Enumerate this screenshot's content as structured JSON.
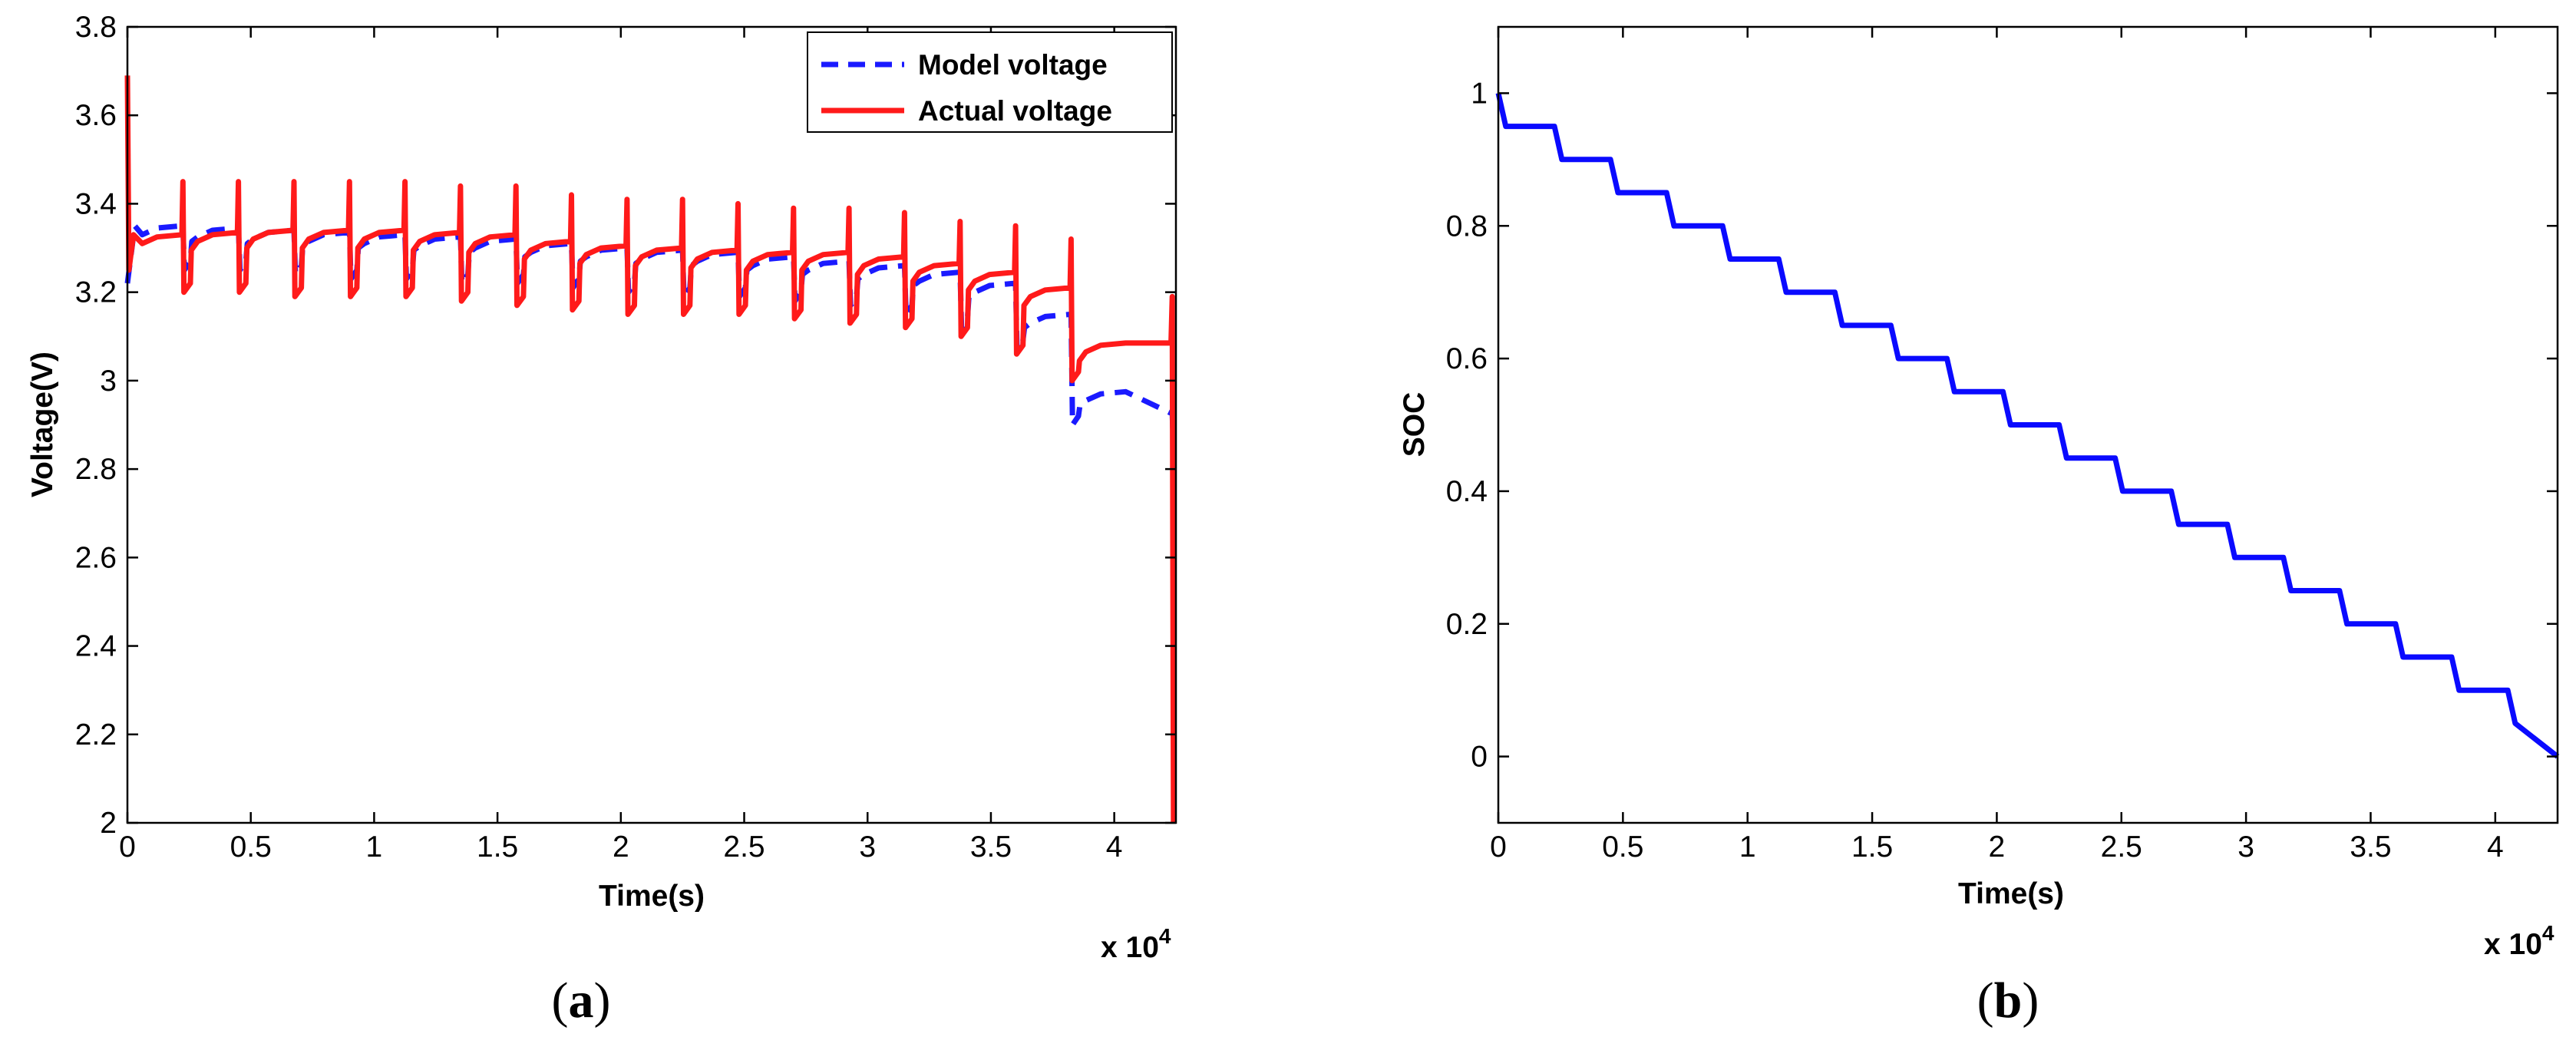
{
  "chart_data": [
    {
      "type": "line",
      "panel_label": "(a)",
      "panel_letter": "a",
      "xlabel": "Time(s)",
      "ylabel": "Voltage(V)",
      "x_multiplier_label": "x 10",
      "x_multiplier_exp": "4",
      "xlim": [
        0,
        42500
      ],
      "ylim": [
        2.0,
        3.8
      ],
      "xticks": [
        0,
        5000,
        10000,
        15000,
        20000,
        25000,
        30000,
        35000,
        40000
      ],
      "xtick_labels": [
        "0",
        "0.5",
        "1",
        "1.5",
        "2",
        "2.5",
        "3",
        "3.5",
        "4"
      ],
      "yticks": [
        2.0,
        2.2,
        2.4,
        2.6,
        2.8,
        3.0,
        3.2,
        3.4,
        3.6,
        3.8
      ],
      "ytick_labels": [
        "2",
        "2.2",
        "2.4",
        "2.6",
        "2.8",
        "3",
        "3.2",
        "3.4",
        "3.6",
        "3.8"
      ],
      "legend": {
        "placement": "top-right",
        "entries": [
          "Model voltage",
          "Actual voltage"
        ]
      },
      "pulse_period": 2250,
      "pulse_width": 300,
      "series": [
        {
          "name": "Model voltage",
          "color": "#1a1aff",
          "style": "dashed",
          "plateau_levels": [
            3.35,
            3.345,
            3.34,
            3.335,
            3.33,
            3.325,
            3.32,
            3.31,
            3.3,
            3.295,
            3.29,
            3.28,
            3.27,
            3.26,
            3.245,
            3.22,
            3.15,
            2.975
          ],
          "dip_levels": [
            3.23,
            3.25,
            3.25,
            3.24,
            3.23,
            3.23,
            3.22,
            3.22,
            3.21,
            3.2,
            3.19,
            3.19,
            3.18,
            3.17,
            3.15,
            3.12,
            3.07,
            2.9
          ],
          "start": 3.22,
          "end": 2.84
        },
        {
          "name": "Actual voltage",
          "color": "#ff1a1a",
          "style": "solid",
          "plateau_levels": [
            3.33,
            3.335,
            3.34,
            3.34,
            3.34,
            3.335,
            3.33,
            3.315,
            3.305,
            3.3,
            3.295,
            3.29,
            3.29,
            3.28,
            3.265,
            3.245,
            3.21,
            3.085
          ],
          "dip_levels": [
            3.25,
            3.2,
            3.2,
            3.19,
            3.19,
            3.19,
            3.18,
            3.17,
            3.16,
            3.15,
            3.15,
            3.15,
            3.14,
            3.13,
            3.12,
            3.1,
            3.06,
            3.0
          ],
          "spike_levels": [
            3.69,
            3.45,
            3.45,
            3.45,
            3.45,
            3.45,
            3.44,
            3.44,
            3.42,
            3.41,
            3.41,
            3.4,
            3.39,
            3.39,
            3.38,
            3.36,
            3.35,
            3.32,
            3.19
          ],
          "end": 2.0
        }
      ]
    },
    {
      "type": "line",
      "panel_label": "(b)",
      "panel_letter": "b",
      "xlabel": "Time(s)",
      "ylabel": "SOC",
      "x_multiplier_label": "x 10",
      "x_multiplier_exp": "4",
      "xlim": [
        0,
        42500
      ],
      "ylim": [
        -0.1,
        1.1
      ],
      "xticks": [
        0,
        5000,
        10000,
        15000,
        20000,
        25000,
        30000,
        35000,
        40000
      ],
      "xtick_labels": [
        "0",
        "0.5",
        "1",
        "1.5",
        "2",
        "2.5",
        "3",
        "3.5",
        "4"
      ],
      "yticks": [
        0,
        0.2,
        0.4,
        0.6,
        0.8,
        1.0
      ],
      "ytick_labels": [
        "0",
        "0.2",
        "0.4",
        "0.6",
        "0.8",
        "1"
      ],
      "series": [
        {
          "name": "SOC",
          "color": "#0a0aff",
          "style": "solid",
          "step_period": 2250,
          "ramp_width": 300,
          "levels": [
            1.0,
            0.95,
            0.9,
            0.85,
            0.8,
            0.75,
            0.7,
            0.65,
            0.6,
            0.55,
            0.5,
            0.45,
            0.4,
            0.35,
            0.3,
            0.25,
            0.2,
            0.15,
            0.1,
            0.05,
            0.0
          ]
        }
      ]
    }
  ]
}
